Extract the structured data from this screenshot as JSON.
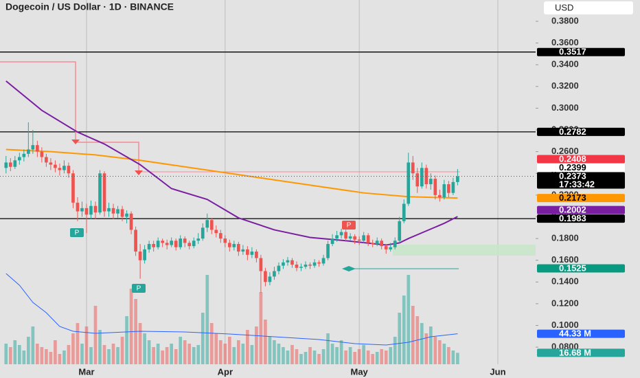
{
  "currency": "USD",
  "markers": [
    "P",
    "P",
    "P"
  ],
  "chart_data": {
    "type": "candlestick",
    "title": "Dogecoin / US Dollar · 1D · BINANCE",
    "up_color": "#26a69a",
    "down_color": "#ef5350",
    "xlim": [
      -1.35,
      118.45
    ],
    "xticks": [
      {
        "value": 18,
        "label": "Mar"
      },
      {
        "value": 49,
        "label": "Apr"
      },
      {
        "value": 79,
        "label": "May"
      },
      {
        "value": 110,
        "label": "Jun"
      }
    ],
    "ylim": [
      0.0516,
      0.3996
    ],
    "yticks": [
      {
        "value": 0.38,
        "label": "0.3800"
      },
      {
        "value": 0.36,
        "label": "0.3600"
      },
      {
        "value": 0.34,
        "label": "0.3400"
      },
      {
        "value": 0.32,
        "label": "0.3200"
      },
      {
        "value": 0.3,
        "label": "0.3000"
      },
      {
        "value": 0.28,
        "label": "0.2800"
      },
      {
        "value": 0.26,
        "label": "0.2600"
      },
      {
        "value": 0.24,
        "label": "0.2400"
      },
      {
        "value": 0.22,
        "label": "0.2200"
      },
      {
        "value": 0.2,
        "label": "0.2000"
      },
      {
        "value": 0.18,
        "label": "0.1800"
      },
      {
        "value": 0.16,
        "label": "0.1600"
      },
      {
        "value": 0.14,
        "label": "0.1400"
      },
      {
        "value": 0.12,
        "label": "0.1200"
      },
      {
        "value": 0.1,
        "label": "0.1000"
      },
      {
        "value": 0.08,
        "label": "0.0800"
      }
    ],
    "grid": true,
    "horizontal_lines": [
      0.3517,
      0.2782,
      0.1983
    ],
    "ohlc": [
      [
        0.245,
        0.256,
        0.24,
        0.25
      ],
      [
        0.25,
        0.254,
        0.242,
        0.246
      ],
      [
        0.246,
        0.256,
        0.244,
        0.252
      ],
      [
        0.252,
        0.259,
        0.248,
        0.255
      ],
      [
        0.255,
        0.262,
        0.251,
        0.258
      ],
      [
        0.258,
        0.287,
        0.255,
        0.262
      ],
      [
        0.262,
        0.28,
        0.258,
        0.266
      ],
      [
        0.266,
        0.27,
        0.255,
        0.26
      ],
      [
        0.26,
        0.264,
        0.25,
        0.255
      ],
      [
        0.255,
        0.258,
        0.246,
        0.25
      ],
      [
        0.25,
        0.254,
        0.243,
        0.248
      ],
      [
        0.248,
        0.252,
        0.241,
        0.245
      ],
      [
        0.245,
        0.249,
        0.238,
        0.243
      ],
      [
        0.243,
        0.252,
        0.24,
        0.247
      ],
      [
        0.247,
        0.25,
        0.236,
        0.24
      ],
      [
        0.24,
        0.243,
        0.208,
        0.213
      ],
      [
        0.213,
        0.218,
        0.196,
        0.205
      ],
      [
        0.205,
        0.214,
        0.2,
        0.208
      ],
      [
        0.208,
        0.212,
        0.185,
        0.202
      ],
      [
        0.202,
        0.215,
        0.198,
        0.21
      ],
      [
        0.21,
        0.214,
        0.198,
        0.204
      ],
      [
        0.204,
        0.243,
        0.202,
        0.24
      ],
      [
        0.24,
        0.242,
        0.2,
        0.205
      ],
      [
        0.205,
        0.213,
        0.2,
        0.208
      ],
      [
        0.208,
        0.212,
        0.198,
        0.203
      ],
      [
        0.203,
        0.21,
        0.199,
        0.207
      ],
      [
        0.207,
        0.21,
        0.196,
        0.2
      ],
      [
        0.2,
        0.206,
        0.194,
        0.203
      ],
      [
        0.203,
        0.205,
        0.184,
        0.188
      ],
      [
        0.188,
        0.191,
        0.164,
        0.168
      ],
      [
        0.168,
        0.175,
        0.143,
        0.16
      ],
      [
        0.16,
        0.174,
        0.157,
        0.17
      ],
      [
        0.17,
        0.178,
        0.167,
        0.175
      ],
      [
        0.175,
        0.178,
        0.168,
        0.172
      ],
      [
        0.172,
        0.181,
        0.17,
        0.178
      ],
      [
        0.178,
        0.18,
        0.172,
        0.176
      ],
      [
        0.176,
        0.179,
        0.17,
        0.174
      ],
      [
        0.174,
        0.181,
        0.172,
        0.178
      ],
      [
        0.178,
        0.18,
        0.169,
        0.172
      ],
      [
        0.172,
        0.183,
        0.17,
        0.18
      ],
      [
        0.18,
        0.182,
        0.172,
        0.176
      ],
      [
        0.176,
        0.178,
        0.17,
        0.173
      ],
      [
        0.173,
        0.181,
        0.171,
        0.178
      ],
      [
        0.178,
        0.185,
        0.175,
        0.18
      ],
      [
        0.18,
        0.194,
        0.178,
        0.19
      ],
      [
        0.19,
        0.203,
        0.186,
        0.197
      ],
      [
        0.197,
        0.199,
        0.184,
        0.188
      ],
      [
        0.188,
        0.192,
        0.181,
        0.185
      ],
      [
        0.185,
        0.188,
        0.176,
        0.18
      ],
      [
        0.18,
        0.183,
        0.172,
        0.176
      ],
      [
        0.176,
        0.179,
        0.168,
        0.172
      ],
      [
        0.172,
        0.178,
        0.169,
        0.175
      ],
      [
        0.175,
        0.177,
        0.164,
        0.168
      ],
      [
        0.168,
        0.174,
        0.165,
        0.17
      ],
      [
        0.17,
        0.173,
        0.16,
        0.165
      ],
      [
        0.165,
        0.172,
        0.162,
        0.168
      ],
      [
        0.168,
        0.17,
        0.158,
        0.162
      ],
      [
        0.162,
        0.165,
        0.13,
        0.15
      ],
      [
        0.15,
        0.153,
        0.136,
        0.14
      ],
      [
        0.14,
        0.149,
        0.137,
        0.145
      ],
      [
        0.145,
        0.154,
        0.142,
        0.15
      ],
      [
        0.15,
        0.158,
        0.147,
        0.155
      ],
      [
        0.155,
        0.161,
        0.152,
        0.158
      ],
      [
        0.158,
        0.163,
        0.155,
        0.16
      ],
      [
        0.16,
        0.162,
        0.153,
        0.156
      ],
      [
        0.156,
        0.159,
        0.15,
        0.153
      ],
      [
        0.153,
        0.157,
        0.15,
        0.154
      ],
      [
        0.154,
        0.159,
        0.152,
        0.156
      ],
      [
        0.156,
        0.158,
        0.152,
        0.155
      ],
      [
        0.155,
        0.161,
        0.153,
        0.158
      ],
      [
        0.158,
        0.16,
        0.154,
        0.157
      ],
      [
        0.157,
        0.165,
        0.155,
        0.162
      ],
      [
        0.162,
        0.178,
        0.16,
        0.175
      ],
      [
        0.175,
        0.184,
        0.173,
        0.18
      ],
      [
        0.18,
        0.187,
        0.177,
        0.183
      ],
      [
        0.183,
        0.189,
        0.18,
        0.186
      ],
      [
        0.186,
        0.188,
        0.177,
        0.18
      ],
      [
        0.18,
        0.185,
        0.178,
        0.182
      ],
      [
        0.182,
        0.184,
        0.175,
        0.179
      ],
      [
        0.179,
        0.182,
        0.174,
        0.178
      ],
      [
        0.178,
        0.186,
        0.176,
        0.183
      ],
      [
        0.183,
        0.185,
        0.173,
        0.176
      ],
      [
        0.176,
        0.179,
        0.172,
        0.175
      ],
      [
        0.175,
        0.181,
        0.173,
        0.178
      ],
      [
        0.178,
        0.18,
        0.17,
        0.173
      ],
      [
        0.173,
        0.175,
        0.166,
        0.17
      ],
      [
        0.17,
        0.176,
        0.168,
        0.172
      ],
      [
        0.172,
        0.181,
        0.17,
        0.178
      ],
      [
        0.178,
        0.2,
        0.176,
        0.196
      ],
      [
        0.196,
        0.216,
        0.194,
        0.212
      ],
      [
        0.212,
        0.259,
        0.21,
        0.25
      ],
      [
        0.25,
        0.256,
        0.234,
        0.24
      ],
      [
        0.24,
        0.245,
        0.222,
        0.228
      ],
      [
        0.228,
        0.25,
        0.226,
        0.245
      ],
      [
        0.245,
        0.248,
        0.226,
        0.23
      ],
      [
        0.23,
        0.24,
        0.225,
        0.235
      ],
      [
        0.235,
        0.238,
        0.216,
        0.22
      ],
      [
        0.22,
        0.225,
        0.214,
        0.218
      ],
      [
        0.218,
        0.234,
        0.216,
        0.23
      ],
      [
        0.23,
        0.233,
        0.218,
        0.222
      ],
      [
        0.222,
        0.236,
        0.22,
        0.232
      ],
      [
        0.232,
        0.244,
        0.229,
        0.2373
      ]
    ],
    "moving_averages": [
      {
        "color": "#ff9800",
        "x": [
          0,
          10,
          20,
          30,
          40,
          50,
          60,
          70,
          80,
          90,
          101
        ],
        "values": [
          0.262,
          0.26,
          0.257,
          0.252,
          0.246,
          0.24,
          0.234,
          0.228,
          0.222,
          0.2185,
          0.2173
        ]
      },
      {
        "color": "#7b1fa2",
        "x": [
          0,
          8,
          16,
          22,
          30,
          37,
          45,
          52,
          60,
          68,
          76,
          85,
          88,
          90,
          94,
          98,
          101
        ],
        "values": [
          0.325,
          0.298,
          0.278,
          0.267,
          0.248,
          0.226,
          0.216,
          0.199,
          0.188,
          0.181,
          0.178,
          0.174,
          0.176,
          0.18,
          0.187,
          0.194,
          0.2002
        ]
      }
    ],
    "volume": {
      "ylim": [
        0,
        530
      ],
      "values": [
        30,
        25,
        35,
        28,
        20,
        40,
        55,
        30,
        25,
        22,
        18,
        35,
        15,
        20,
        28,
        45,
        60,
        30,
        55,
        25,
        85,
        50,
        28,
        22,
        30,
        25,
        40,
        70,
        110,
        95,
        60,
        45,
        35,
        25,
        30,
        20,
        25,
        30,
        22,
        40,
        35,
        30,
        25,
        28,
        75,
        130,
        60,
        45,
        35,
        30,
        40,
        25,
        35,
        30,
        50,
        28,
        55,
        105,
        65,
        40,
        35,
        30,
        25,
        20,
        28,
        22,
        15,
        18,
        25,
        20,
        15,
        22,
        45,
        30,
        25,
        35,
        20,
        25,
        18,
        22,
        28,
        20,
        15,
        18,
        22,
        20,
        25,
        40,
        75,
        100,
        130,
        85,
        70,
        60,
        45,
        55,
        40,
        35,
        30,
        25,
        20,
        16.68
      ],
      "ma": {
        "color": "#2962ff",
        "x": [
          0,
          3,
          6,
          9,
          12,
          15,
          20,
          30,
          40,
          50,
          60,
          70,
          78,
          85,
          90,
          95,
          101
        ],
        "values": [
          132,
          115,
          90,
          75,
          55,
          48,
          45,
          48,
          47,
          44,
          40,
          36,
          30,
          28,
          32,
          40,
          44.33
        ]
      },
      "labels": [
        {
          "value": 44.33,
          "label": "44.33 M",
          "color": "#2962ff"
        },
        {
          "value": 16.68,
          "label": "16.68 M",
          "color": "#26a69a"
        }
      ]
    },
    "price_labels": [
      {
        "value": 0.3517,
        "bg": "#000000",
        "fg": "#ffffff"
      },
      {
        "value": 0.2782,
        "bg": "#000000",
        "fg": "#ffffff"
      },
      {
        "value": 0.2408,
        "bg": "#f23645",
        "fg": "#ffffff"
      },
      {
        "value": 0.2399,
        "bg": "#ffffff",
        "fg": "#000000"
      },
      {
        "value": 0.2373,
        "bg": "#000000",
        "fg": "#ffffff",
        "countdown": "17:33:42"
      },
      {
        "value": 0.2173,
        "bg": "#ff9800",
        "fg": "#000000"
      },
      {
        "value": 0.2002,
        "bg": "#7b1fa2",
        "fg": "#ffffff"
      },
      {
        "value": 0.1983,
        "bg": "#000000",
        "fg": "#ffffff"
      },
      {
        "value": 0.1525,
        "bg": "#089981",
        "fg": "#ffffff"
      }
    ]
  }
}
